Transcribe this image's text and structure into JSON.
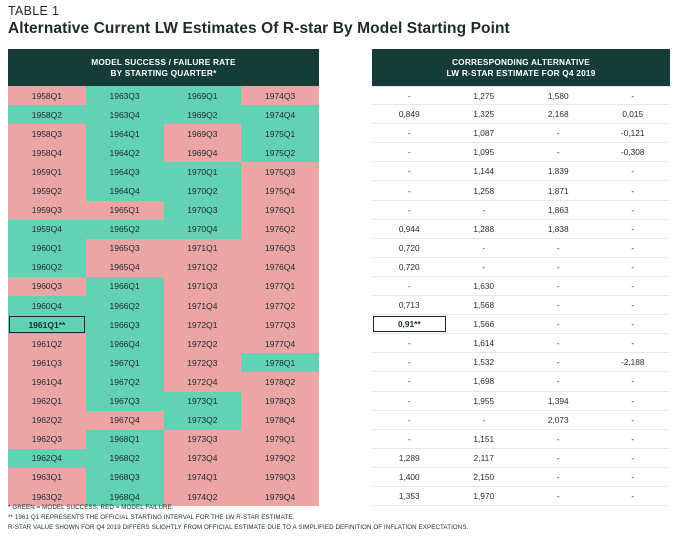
{
  "table_label": "TABLE 1",
  "title": "Alternative Current LW Estimates Of R-star By Model Starting Point",
  "left_header": {
    "line1": "MODEL SUCCESS / FAILURE RATE",
    "line2": "BY STARTING QUARTER*"
  },
  "right_header": {
    "line1": "CORRESPONDING ALTERNATIVE",
    "line2": "LW R-STAR ESTIMATE FOR Q4 2019"
  },
  "colors": {
    "success": "#63d1b3",
    "failure": "#eba5a4",
    "header_bg": "#163c37"
  },
  "notes": [
    "* GREEN = MODEL SUCCESS, RED = MODEL FAILURE.",
    "** 1961 Q1 REPRESENTS THE OFFICIAL STARTING INTERVAL FOR THE LW R-STAR ESTIMATE.",
    "R-STAR VALUE SHOWN FOR Q4 2019 DIFFERS SLIGHTLY FROM OFFICIAL ESTIMATE DUE TO A SIMPLIFIED DEFINITION OF INFLATION EXPECTATIONS."
  ],
  "chart_data": {
    "type": "table",
    "highlight": {
      "row": 12,
      "col": 0
    },
    "quarters": [
      [
        [
          "1958Q1",
          "f"
        ],
        [
          "1963Q3",
          "s"
        ],
        [
          "1969Q1",
          "s"
        ],
        [
          "1974Q3",
          "f"
        ]
      ],
      [
        [
          "1958Q2",
          "s"
        ],
        [
          "1963Q4",
          "s"
        ],
        [
          "1969Q2",
          "s"
        ],
        [
          "1974Q4",
          "s"
        ]
      ],
      [
        [
          "1958Q3",
          "f"
        ],
        [
          "1964Q1",
          "s"
        ],
        [
          "1969Q3",
          "f"
        ],
        [
          "1975Q1",
          "s"
        ]
      ],
      [
        [
          "1958Q4",
          "f"
        ],
        [
          "1964Q2",
          "s"
        ],
        [
          "1969Q4",
          "f"
        ],
        [
          "1975Q2",
          "s"
        ]
      ],
      [
        [
          "1959Q1",
          "f"
        ],
        [
          "1964Q3",
          "s"
        ],
        [
          "1970Q1",
          "s"
        ],
        [
          "1975Q3",
          "f"
        ]
      ],
      [
        [
          "1959Q2",
          "f"
        ],
        [
          "1964Q4",
          "s"
        ],
        [
          "1970Q2",
          "s"
        ],
        [
          "1975Q4",
          "f"
        ]
      ],
      [
        [
          "1959Q3",
          "f"
        ],
        [
          "1965Q1",
          "f"
        ],
        [
          "1970Q3",
          "s"
        ],
        [
          "1976Q1",
          "f"
        ]
      ],
      [
        [
          "1959Q4",
          "s"
        ],
        [
          "1965Q2",
          "s"
        ],
        [
          "1970Q4",
          "s"
        ],
        [
          "1976Q2",
          "f"
        ]
      ],
      [
        [
          "1960Q1",
          "s"
        ],
        [
          "1965Q3",
          "f"
        ],
        [
          "1971Q1",
          "f"
        ],
        [
          "1976Q3",
          "f"
        ]
      ],
      [
        [
          "1960Q2",
          "s"
        ],
        [
          "1965Q4",
          "f"
        ],
        [
          "1971Q2",
          "f"
        ],
        [
          "1976Q4",
          "f"
        ]
      ],
      [
        [
          "1960Q3",
          "f"
        ],
        [
          "1966Q1",
          "s"
        ],
        [
          "1971Q3",
          "f"
        ],
        [
          "1977Q1",
          "f"
        ]
      ],
      [
        [
          "1960Q4",
          "s"
        ],
        [
          "1966Q2",
          "s"
        ],
        [
          "1971Q4",
          "f"
        ],
        [
          "1977Q2",
          "f"
        ]
      ],
      [
        [
          "1961Q1**",
          "s"
        ],
        [
          "1966Q3",
          "s"
        ],
        [
          "1972Q1",
          "f"
        ],
        [
          "1977Q3",
          "f"
        ]
      ],
      [
        [
          "1961Q2",
          "f"
        ],
        [
          "1966Q4",
          "s"
        ],
        [
          "1972Q2",
          "f"
        ],
        [
          "1977Q4",
          "f"
        ]
      ],
      [
        [
          "1961Q3",
          "f"
        ],
        [
          "1967Q1",
          "s"
        ],
        [
          "1972Q3",
          "f"
        ],
        [
          "1978Q1",
          "s"
        ]
      ],
      [
        [
          "1961Q4",
          "f"
        ],
        [
          "1967Q2",
          "s"
        ],
        [
          "1972Q4",
          "f"
        ],
        [
          "1978Q2",
          "f"
        ]
      ],
      [
        [
          "1962Q1",
          "f"
        ],
        [
          "1967Q3",
          "s"
        ],
        [
          "1973Q1",
          "s"
        ],
        [
          "1978Q3",
          "f"
        ]
      ],
      [
        [
          "1962Q2",
          "f"
        ],
        [
          "1967Q4",
          "f"
        ],
        [
          "1973Q2",
          "s"
        ],
        [
          "1978Q4",
          "f"
        ]
      ],
      [
        [
          "1962Q3",
          "f"
        ],
        [
          "1968Q1",
          "s"
        ],
        [
          "1973Q3",
          "f"
        ],
        [
          "1979Q1",
          "f"
        ]
      ],
      [
        [
          "1962Q4",
          "s"
        ],
        [
          "1968Q2",
          "s"
        ],
        [
          "1973Q4",
          "f"
        ],
        [
          "1979Q2",
          "f"
        ]
      ],
      [
        [
          "1963Q1",
          "f"
        ],
        [
          "1968Q3",
          "s"
        ],
        [
          "1974Q1",
          "f"
        ],
        [
          "1979Q3",
          "f"
        ]
      ],
      [
        [
          "1963Q2",
          "f"
        ],
        [
          "1968Q4",
          "s"
        ],
        [
          "1974Q2",
          "f"
        ],
        [
          "1979Q4",
          "f"
        ]
      ]
    ],
    "estimates": [
      [
        "-",
        "1,275",
        "1,580",
        "-"
      ],
      [
        "0,849",
        "1,325",
        "2,168",
        "0,015"
      ],
      [
        "-",
        "1,087",
        "-",
        "-0,121"
      ],
      [
        "-",
        "1,095",
        "-",
        "-0,308"
      ],
      [
        "-",
        "1,144",
        "1,839",
        "-"
      ],
      [
        "-",
        "1,258",
        "1,871",
        "-"
      ],
      [
        "-",
        "-",
        "1,863",
        "-"
      ],
      [
        "0,944",
        "1,288",
        "1,838",
        "-"
      ],
      [
        "0,720",
        "-",
        "-",
        "-"
      ],
      [
        "0,720",
        "-",
        "-",
        "-"
      ],
      [
        "-",
        "1,630",
        "-",
        "-"
      ],
      [
        "0,713",
        "1,568",
        "-",
        "-"
      ],
      [
        "0,91**",
        "1,566",
        "-",
        "-"
      ],
      [
        "-",
        "1,614",
        "-",
        "-"
      ],
      [
        "-",
        "1,532",
        "-",
        "-2,188"
      ],
      [
        "-",
        "1,698",
        "-",
        "-"
      ],
      [
        "-",
        "1,955",
        "1,394",
        "-"
      ],
      [
        "-",
        "-",
        "2,073",
        "-"
      ],
      [
        "-",
        "1,151",
        "-",
        "-"
      ],
      [
        "1,289",
        "2,117",
        "-",
        "-"
      ],
      [
        "1,400",
        "2,150",
        "-",
        "-"
      ],
      [
        "1,353",
        "1,970",
        "-",
        "-"
      ]
    ]
  }
}
